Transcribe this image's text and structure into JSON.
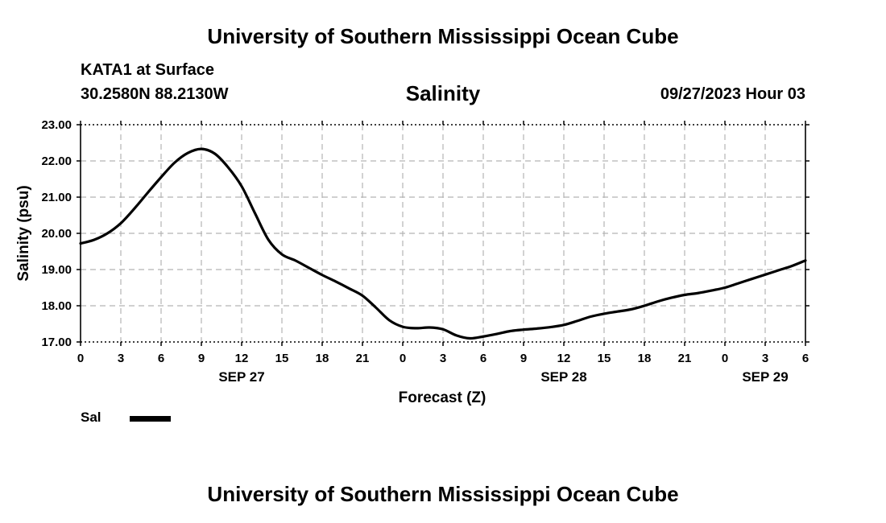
{
  "header": {
    "title": "University of Southern Mississippi Ocean Cube",
    "station": "KATA1 at Surface",
    "coords": "30.2580N  88.2130W",
    "variable": "Salinity",
    "datetime": "09/27/2023 Hour 03"
  },
  "footer": {
    "title": "University of Southern Mississippi Ocean Cube"
  },
  "chart_data": {
    "type": "line",
    "ylabel": "Salinity (psu)",
    "xlabel": "Forecast (Z)",
    "ylim": [
      17.0,
      23.0
    ],
    "yticks": [
      "17.00",
      "18.00",
      "19.00",
      "20.00",
      "21.00",
      "22.00",
      "23.00"
    ],
    "xlim": [
      0,
      54
    ],
    "xticks": [
      "0",
      "3",
      "6",
      "9",
      "12",
      "15",
      "18",
      "21",
      "0",
      "3",
      "6",
      "9",
      "12",
      "15",
      "18",
      "21",
      "0",
      "3",
      "6"
    ],
    "date_labels": [
      {
        "label": "SEP 27",
        "hour": 12
      },
      {
        "label": "SEP 28",
        "hour": 36
      },
      {
        "label": "SEP 29",
        "hour": 51
      }
    ],
    "grid": true,
    "series": [
      {
        "name": "Sal",
        "x": [
          0,
          1,
          2,
          3,
          4,
          5,
          6,
          7,
          8,
          9,
          10,
          11,
          12,
          13,
          14,
          15,
          16,
          17,
          18,
          19,
          20,
          21,
          22,
          23,
          24,
          25,
          26,
          27,
          28,
          29,
          30,
          31,
          32,
          33,
          34,
          35,
          36,
          37,
          38,
          39,
          40,
          41,
          42,
          43,
          44,
          45,
          46,
          47,
          48,
          49,
          50,
          51,
          52,
          53,
          54
        ],
        "values": [
          19.72,
          19.82,
          20.0,
          20.28,
          20.68,
          21.12,
          21.55,
          21.95,
          22.22,
          22.33,
          22.2,
          21.82,
          21.3,
          20.55,
          19.82,
          19.42,
          19.25,
          19.05,
          18.85,
          18.67,
          18.48,
          18.28,
          17.95,
          17.6,
          17.42,
          17.38,
          17.4,
          17.35,
          17.18,
          17.1,
          17.15,
          17.22,
          17.3,
          17.34,
          17.37,
          17.41,
          17.47,
          17.58,
          17.7,
          17.78,
          17.84,
          17.9,
          18.0,
          18.12,
          18.22,
          18.3,
          18.35,
          18.42,
          18.5,
          18.62,
          18.74,
          18.86,
          18.98,
          19.1,
          19.25
        ]
      }
    ],
    "legend": [
      {
        "label": "Sal",
        "color": "#000000"
      }
    ]
  }
}
